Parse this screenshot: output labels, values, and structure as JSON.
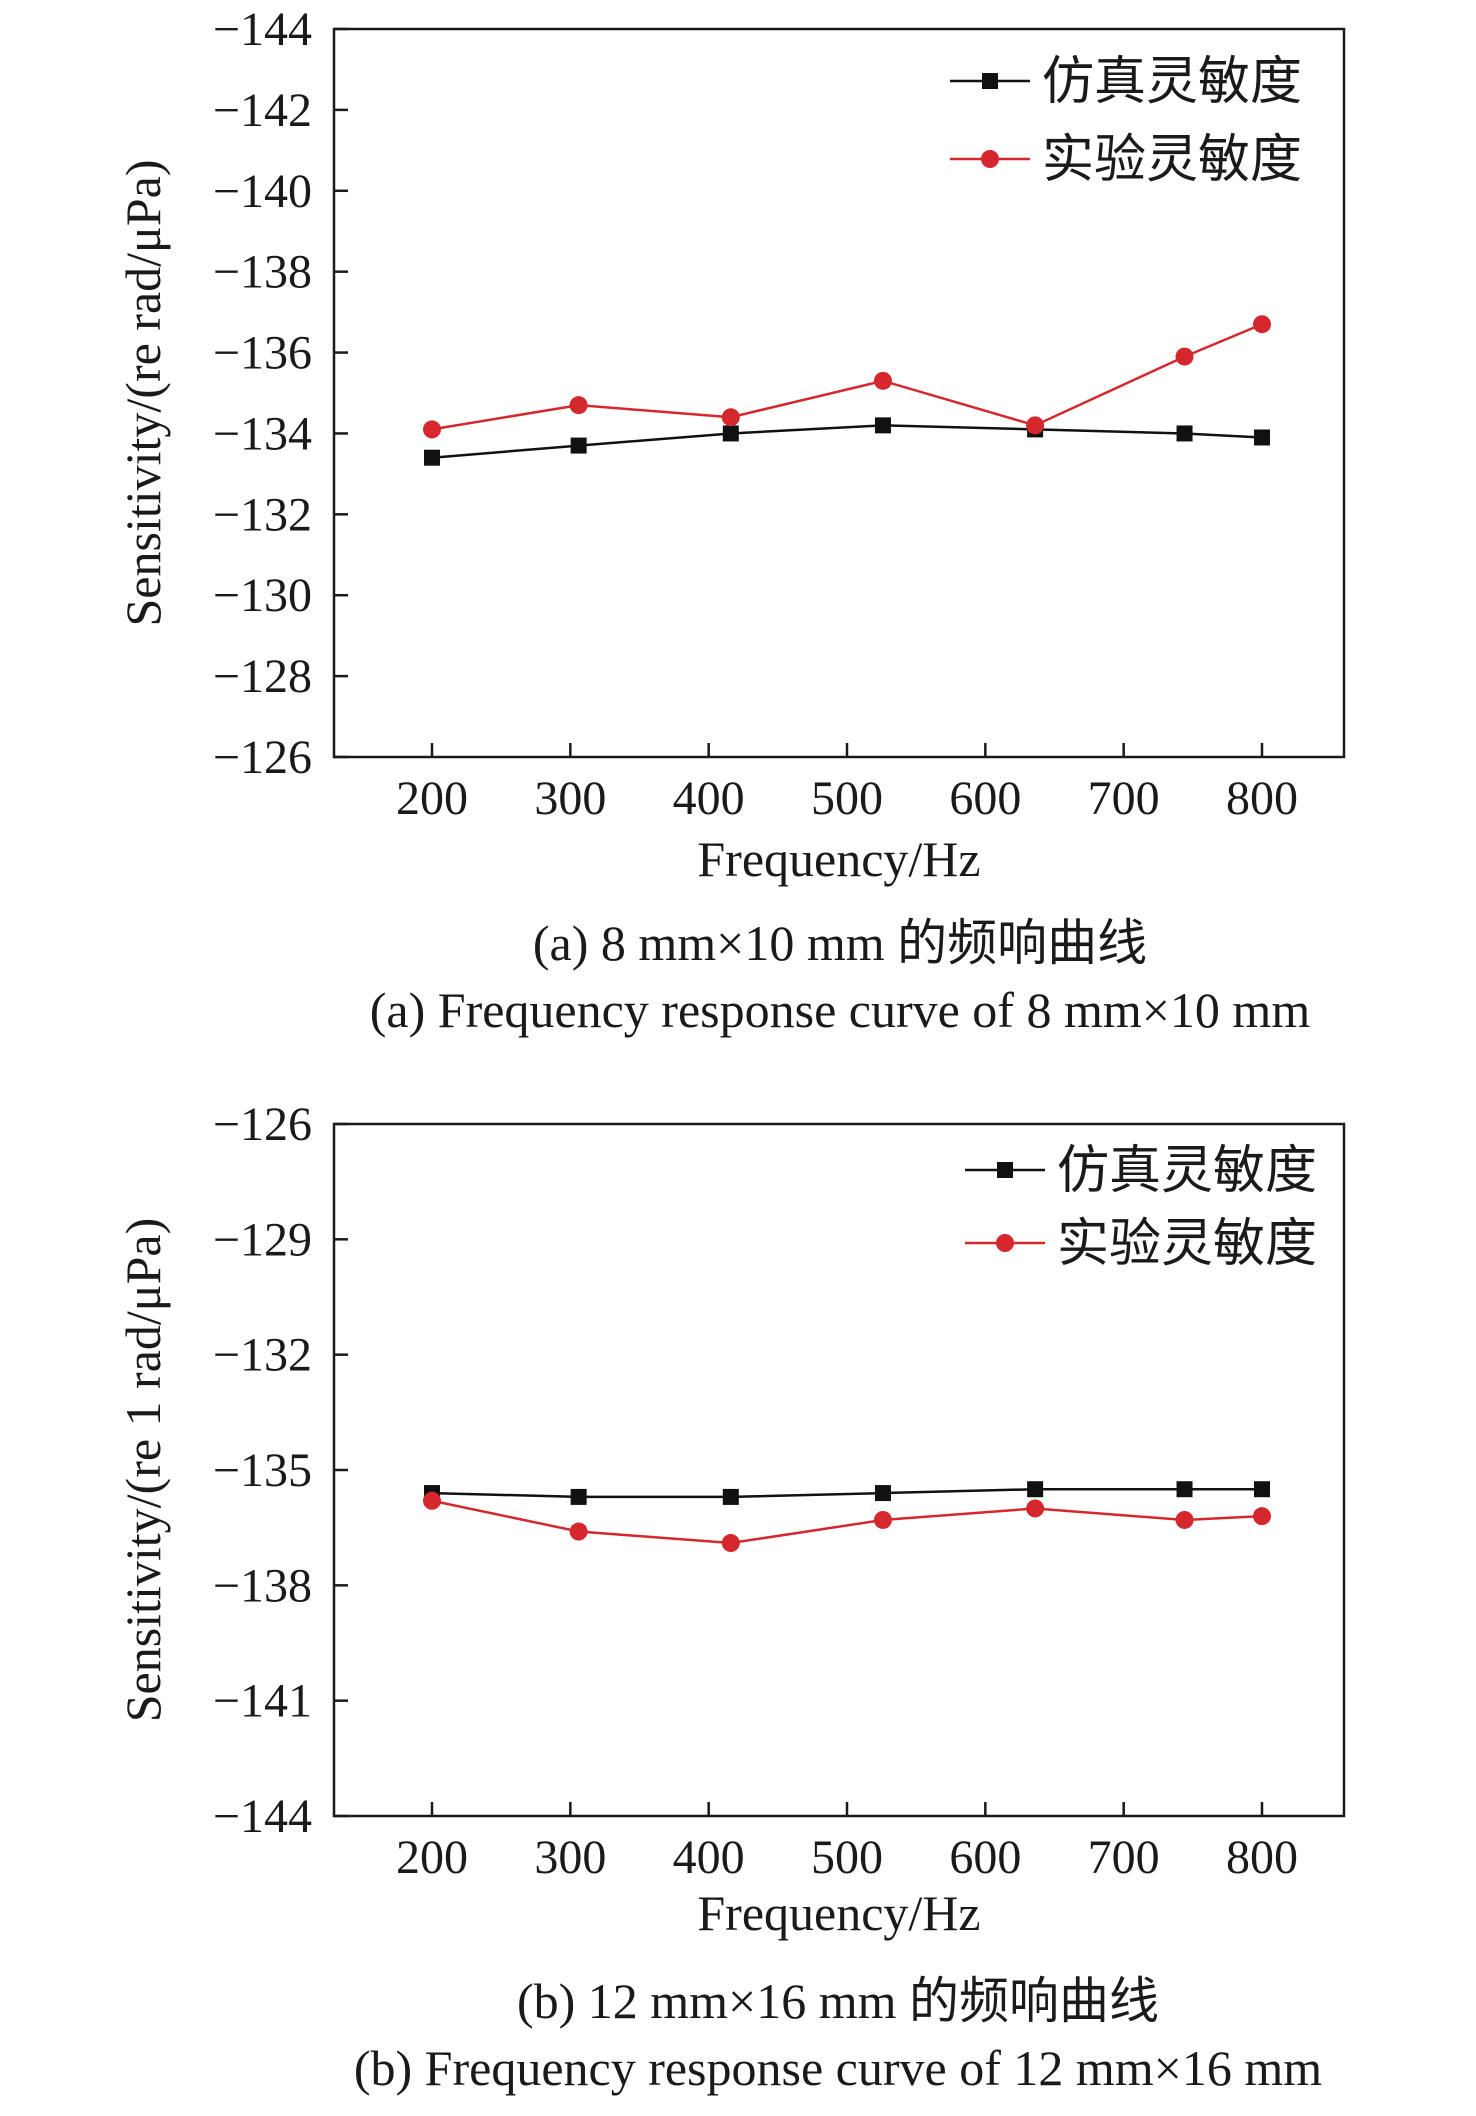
{
  "chart_data": [
    {
      "type": "line",
      "xlabel": "Frequency/Hz",
      "ylabel": "Sensitivity/(re rad/μPa)",
      "xticks": [
        200,
        300,
        400,
        500,
        600,
        700,
        800
      ],
      "ylim": [
        -126,
        -144
      ],
      "yticks": [
        -144,
        -142,
        -140,
        -138,
        -136,
        -134,
        -132,
        -130,
        -128,
        -126
      ],
      "grid": false,
      "legend_position": "top-right",
      "series": [
        {
          "name": "仿真灵敏度",
          "color": "#111111",
          "marker": "square",
          "x": [
            200,
            306,
            416,
            526,
            636,
            744,
            800
          ],
          "y": [
            -133.4,
            -133.7,
            -134.0,
            -134.2,
            -134.1,
            -134.0,
            -133.9
          ]
        },
        {
          "name": "实验灵敏度",
          "color": "#d4282e",
          "marker": "circle",
          "x": [
            200,
            306,
            416,
            526,
            636,
            744,
            800
          ],
          "y": [
            -134.1,
            -134.7,
            -134.4,
            -135.3,
            -134.2,
            -135.9,
            -136.7
          ]
        }
      ],
      "caption_cn": "(a)  8 mm×10 mm 的频响曲线",
      "caption_en": "(a)  Frequency response curve of 8 mm×10 mm"
    },
    {
      "type": "line",
      "xlabel": "Frequency/Hz",
      "ylabel": "Sensitivity/(re 1 rad/μPa)",
      "xticks": [
        200,
        300,
        400,
        500,
        600,
        700,
        800
      ],
      "ylim": [
        -144,
        -126
      ],
      "yticks": [
        -126,
        -129,
        -132,
        -135,
        -138,
        -141,
        -144
      ],
      "grid": false,
      "legend_position": "top-right",
      "series": [
        {
          "name": "仿真灵敏度",
          "color": "#111111",
          "marker": "square",
          "x": [
            200,
            306,
            416,
            526,
            636,
            744,
            800
          ],
          "y": [
            -135.6,
            -135.7,
            -135.7,
            -135.6,
            -135.5,
            -135.5,
            -135.5
          ]
        },
        {
          "name": "实验灵敏度",
          "color": "#d4282e",
          "marker": "circle",
          "x": [
            200,
            306,
            416,
            526,
            636,
            744,
            800
          ],
          "y": [
            -135.8,
            -136.6,
            -136.9,
            -136.3,
            -136.0,
            -136.3,
            -136.2
          ]
        }
      ],
      "caption_cn": "(b) 12 mm×16 mm 的频响曲线",
      "caption_en": "(b) Frequency response curve of 12 mm×16 mm"
    }
  ]
}
